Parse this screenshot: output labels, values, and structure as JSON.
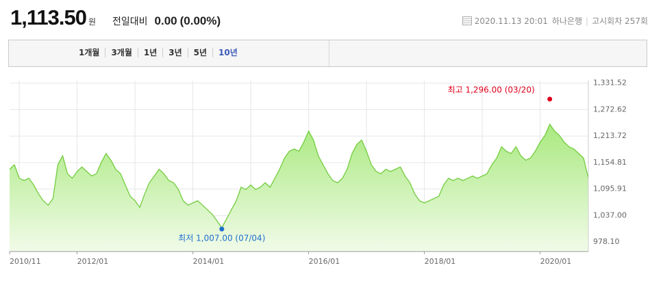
{
  "header": {
    "price": "1,113.50",
    "unit": "원",
    "compare_label": "전일대비",
    "change": "0.00",
    "change_pct": "(0.00%)",
    "datetime": "2020.11.13 20:01",
    "bank": "하나은행",
    "round": "고시회차 257회"
  },
  "tabs": {
    "items": [
      "1개월",
      "3개월",
      "1년",
      "3년",
      "5년",
      "10년"
    ],
    "selected": 5
  },
  "chart_data": {
    "type": "area",
    "color": "#72cc3e",
    "categories": [
      "2010/11",
      "2010/12",
      "2011/01",
      "2011/02",
      "2011/03",
      "2011/04",
      "2011/05",
      "2011/06",
      "2011/07",
      "2011/08",
      "2011/09",
      "2011/10",
      "2011/11",
      "2011/12",
      "2012/01",
      "2012/02",
      "2012/03",
      "2012/04",
      "2012/05",
      "2012/06",
      "2012/07",
      "2012/08",
      "2012/09",
      "2012/10",
      "2012/11",
      "2012/12",
      "2013/01",
      "2013/02",
      "2013/03",
      "2013/04",
      "2013/05",
      "2013/06",
      "2013/07",
      "2013/08",
      "2013/09",
      "2013/10",
      "2013/11",
      "2013/12",
      "2014/01",
      "2014/02",
      "2014/03",
      "2014/04",
      "2014/05",
      "2014/06",
      "2014/07",
      "2014/08",
      "2014/09",
      "2014/10",
      "2014/11",
      "2014/12",
      "2015/01",
      "2015/02",
      "2015/03",
      "2015/04",
      "2015/05",
      "2015/06",
      "2015/07",
      "2015/08",
      "2015/09",
      "2015/10",
      "2015/11",
      "2015/12",
      "2016/01",
      "2016/02",
      "2016/03",
      "2016/04",
      "2016/05",
      "2016/06",
      "2016/07",
      "2016/08",
      "2016/09",
      "2016/10",
      "2016/11",
      "2016/12",
      "2017/01",
      "2017/02",
      "2017/03",
      "2017/04",
      "2017/05",
      "2017/06",
      "2017/07",
      "2017/08",
      "2017/09",
      "2017/10",
      "2017/11",
      "2017/12",
      "2018/01",
      "2018/02",
      "2018/03",
      "2018/04",
      "2018/05",
      "2018/06",
      "2018/07",
      "2018/08",
      "2018/09",
      "2018/10",
      "2018/11",
      "2018/12",
      "2019/01",
      "2019/02",
      "2019/03",
      "2019/04",
      "2019/05",
      "2019/06",
      "2019/07",
      "2019/08",
      "2019/09",
      "2019/10",
      "2019/11",
      "2019/12",
      "2020/01",
      "2020/02",
      "2020/03",
      "2020/04",
      "2020/05",
      "2020/06",
      "2020/07",
      "2020/08",
      "2020/09",
      "2020/10",
      "2020/11"
    ],
    "values": [
      1140,
      1150,
      1120,
      1115,
      1120,
      1105,
      1085,
      1070,
      1060,
      1075,
      1150,
      1170,
      1130,
      1120,
      1135,
      1145,
      1135,
      1125,
      1130,
      1155,
      1175,
      1160,
      1140,
      1130,
      1105,
      1080,
      1070,
      1055,
      1085,
      1110,
      1125,
      1140,
      1130,
      1115,
      1110,
      1095,
      1070,
      1060,
      1065,
      1070,
      1060,
      1050,
      1040,
      1025,
      1010,
      1030,
      1050,
      1070,
      1100,
      1095,
      1105,
      1095,
      1100,
      1110,
      1100,
      1120,
      1140,
      1165,
      1180,
      1185,
      1180,
      1200,
      1225,
      1205,
      1170,
      1150,
      1130,
      1115,
      1110,
      1120,
      1140,
      1175,
      1195,
      1205,
      1180,
      1150,
      1135,
      1130,
      1140,
      1135,
      1140,
      1145,
      1125,
      1110,
      1085,
      1070,
      1065,
      1070,
      1075,
      1080,
      1105,
      1120,
      1115,
      1120,
      1115,
      1120,
      1125,
      1120,
      1125,
      1130,
      1150,
      1165,
      1190,
      1180,
      1175,
      1190,
      1170,
      1160,
      1165,
      1180,
      1200,
      1215,
      1240,
      1225,
      1215,
      1200,
      1190,
      1185,
      1175,
      1165,
      1120
    ],
    "xticks": [
      "2010/11",
      "2012/01",
      "2014/01",
      "2016/01",
      "2018/01",
      "2020/01"
    ],
    "ylim": [
      957,
      1337
    ],
    "yticks": [
      {
        "value": 978.1,
        "label": "978.10"
      },
      {
        "value": 1037,
        "label": "1,037.00"
      },
      {
        "value": 1095.91,
        "label": "1,095.91"
      },
      {
        "value": 1154.81,
        "label": "1,154.81"
      },
      {
        "value": 1213.72,
        "label": "1,213.72"
      },
      {
        "value": 1272.62,
        "label": "1,272.62"
      },
      {
        "value": 1331.52,
        "label": "1,331.52"
      }
    ],
    "grid": true,
    "annotations": [
      {
        "text": "최고 1,296.00 (03/20)",
        "x": "2020/03",
        "y": 1296,
        "color": "#e0001b"
      },
      {
        "text": "최저 1,007.00 (07/04)",
        "x": "2014/07",
        "y": 1007,
        "color": "#1f6fd0"
      }
    ]
  }
}
